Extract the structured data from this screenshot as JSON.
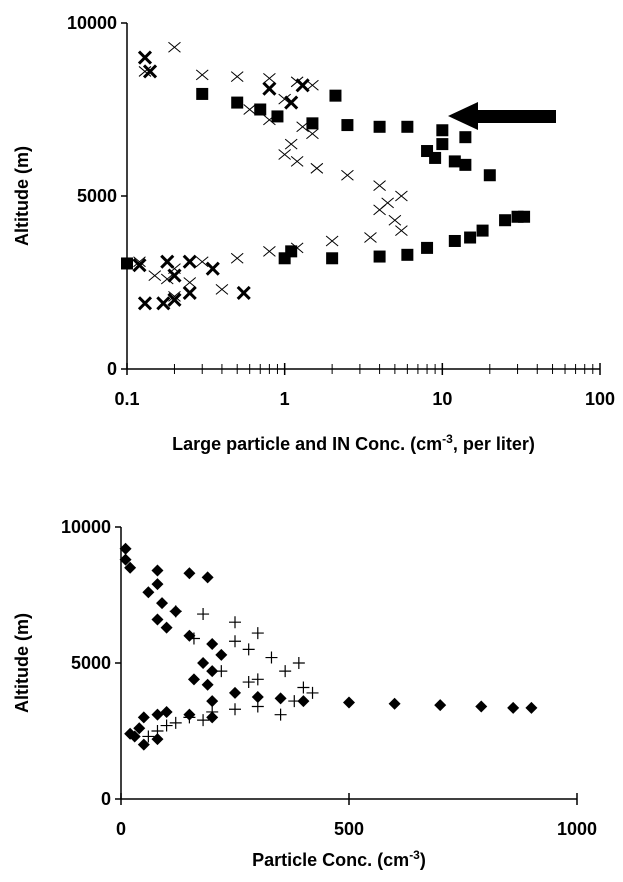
{
  "chart_data": [
    {
      "type": "scatter",
      "ylabel": "Altitude (m)",
      "xlabel": [
        "Large particle and IN Conc.  (cm",
        "-3",
        ", per liter)"
      ],
      "xlog": true,
      "xlim": [
        0.1,
        100
      ],
      "ylim": [
        0,
        10000
      ],
      "xticks": [
        0.1,
        1,
        10,
        100
      ],
      "xminorticks": [
        0.2,
        0.3,
        0.4,
        0.5,
        0.6,
        0.7,
        0.8,
        0.9,
        2,
        3,
        4,
        5,
        6,
        7,
        8,
        9,
        20,
        30,
        40,
        50,
        60,
        70,
        80,
        90
      ],
      "yticks": [
        0,
        5000,
        10000
      ],
      "series": [
        {
          "marker": "x",
          "color": "#000000",
          "x": [
            0.13,
            0.2,
            0.3,
            0.5,
            0.8,
            1.2,
            1.5,
            1,
            0.6,
            0.8,
            1.3,
            1.5,
            1.1,
            1.0,
            1.2,
            1.6,
            2.5,
            4,
            5.5,
            4.5,
            4,
            5,
            5.5,
            3.5,
            2,
            1.2,
            0.8,
            0.5,
            0.3,
            0.2,
            0.15,
            0.25,
            0.4,
            0.2,
            0.12,
            0.18
          ],
          "y": [
            8600,
            9300,
            8500,
            8450,
            8400,
            8300,
            8200,
            7800,
            7500,
            7200,
            7000,
            6800,
            6500,
            6200,
            6000,
            5800,
            5600,
            5300,
            5000,
            4800,
            4600,
            4300,
            4000,
            3800,
            3700,
            3500,
            3400,
            3200,
            3100,
            2900,
            2700,
            2500,
            2300,
            2100,
            3100,
            2600
          ]
        },
        {
          "marker": "X",
          "color": "#000000",
          "x": [
            0.13,
            0.14,
            0.13,
            0.18,
            0.25,
            0.35,
            0.55,
            0.2,
            0.17,
            0.12,
            0.8,
            1.3,
            1.1,
            0.2,
            0.25
          ],
          "y": [
            9000,
            8600,
            1900,
            3100,
            3100,
            2900,
            2200,
            2000,
            1900,
            3000,
            8100,
            8200,
            7700,
            2700,
            2200
          ]
        },
        {
          "marker": "square",
          "color": "#000000",
          "x": [
            0.1,
            0.3,
            0.5,
            0.7,
            0.9,
            1.5,
            2.1,
            2.5,
            4,
            6,
            10,
            14,
            8,
            9,
            12,
            14,
            20,
            30,
            25,
            18,
            12,
            8,
            6,
            4,
            2,
            1,
            1.1,
            33,
            15,
            10
          ],
          "y": [
            3050,
            7950,
            7700,
            7500,
            7300,
            7100,
            7900,
            7050,
            7000,
            7000,
            6900,
            6700,
            6300,
            6100,
            6000,
            5900,
            5600,
            4400,
            4300,
            4000,
            3700,
            3500,
            3300,
            3250,
            3200,
            3200,
            3400,
            4400,
            3800,
            6500
          ]
        }
      ]
    },
    {
      "type": "scatter",
      "ylabel": "Altitude (m)",
      "xlabel": [
        "Particle Conc. (cm",
        "-3",
        ")"
      ],
      "xlim": [
        0,
        1000
      ],
      "ylim": [
        0,
        10000
      ],
      "xticks": [
        0,
        500,
        1000
      ],
      "yticks": [
        0,
        5000,
        10000
      ],
      "series": [
        {
          "marker": "diamond",
          "color": "#000000",
          "x": [
            10,
            10,
            20,
            80,
            150,
            190,
            80,
            60,
            90,
            120,
            80,
            100,
            150,
            200,
            220,
            180,
            200,
            160,
            190,
            250,
            300,
            350,
            400,
            500,
            600,
            700,
            790,
            860,
            900,
            200,
            100,
            50,
            80,
            150,
            200,
            40,
            30,
            50,
            80,
            20
          ],
          "y": [
            9200,
            8800,
            8500,
            8400,
            8300,
            8150,
            7900,
            7600,
            7200,
            6900,
            6600,
            6300,
            6000,
            5700,
            5300,
            5000,
            4700,
            4400,
            4200,
            3900,
            3750,
            3700,
            3600,
            3550,
            3500,
            3450,
            3400,
            3350,
            3350,
            3600,
            3200,
            3000,
            3100,
            3100,
            3000,
            2600,
            2300,
            2000,
            2200,
            2400
          ]
        },
        {
          "marker": "plus",
          "color": "#000000",
          "x": [
            120,
            180,
            250,
            300,
            250,
            280,
            330,
            390,
            360,
            300,
            400,
            420,
            380,
            300,
            250,
            200,
            150,
            120,
            100,
            80,
            60,
            180,
            220,
            280,
            160,
            350
          ],
          "y": [
            6900,
            6800,
            6500,
            6100,
            5800,
            5500,
            5200,
            5000,
            4700,
            4400,
            4100,
            3900,
            3600,
            3400,
            3300,
            3200,
            3000,
            2800,
            2700,
            2500,
            2300,
            2900,
            4700,
            4300,
            5900,
            3100
          ]
        }
      ]
    }
  ]
}
